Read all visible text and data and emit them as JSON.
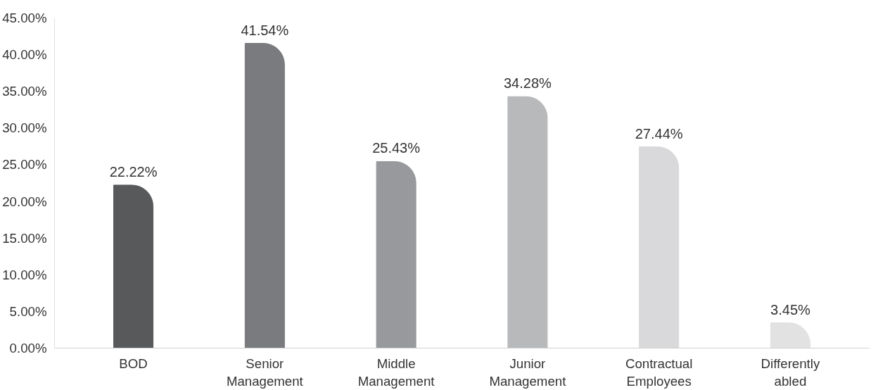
{
  "chart_data": {
    "type": "bar",
    "categories": [
      "BOD",
      "Senior Management",
      "Middle Management",
      "Junior Management",
      "Contractual Employees",
      "Differently abled"
    ],
    "values": [
      22.22,
      41.54,
      25.43,
      34.28,
      27.44,
      3.45
    ],
    "value_labels": [
      "22.22%",
      "41.54%",
      "25.43%",
      "34.28%",
      "27.44%",
      "3.45%"
    ],
    "colors": [
      "#58595b",
      "#7a7b7f",
      "#98999c",
      "#b8b9bb",
      "#d9d9db",
      "#e2e2e3"
    ],
    "ylim": [
      0,
      45
    ],
    "yticks": [
      {
        "value": 0,
        "label": "0.00%"
      },
      {
        "value": 5,
        "label": "5.00%"
      },
      {
        "value": 10,
        "label": "10.00%"
      },
      {
        "value": 15,
        "label": "15.00%"
      },
      {
        "value": 20,
        "label": "20.00%"
      },
      {
        "value": 25,
        "label": "25.00%"
      },
      {
        "value": 30,
        "label": "30.00%"
      },
      {
        "value": 35,
        "label": "35.00%"
      },
      {
        "value": 40,
        "label": "40.00%"
      },
      {
        "value": 45,
        "label": "45.00%"
      }
    ],
    "grid": false
  }
}
